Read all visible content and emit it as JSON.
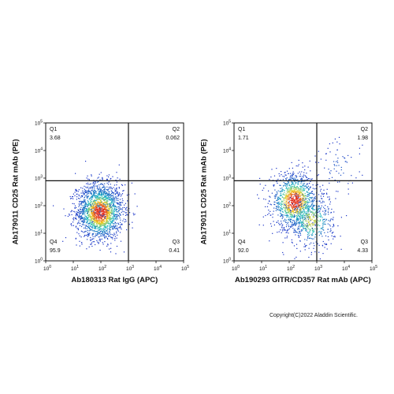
{
  "copyright": "Copyright(C)2022 Aladdin Scientific.",
  "colors": {
    "axis": "#111111",
    "divider": "#111111",
    "density_low": "#1a33c7",
    "density_mid": "#22c3c3",
    "density_high": "#f0d020",
    "density_peak": "#e2301e"
  },
  "chart_data": [
    {
      "type": "scatter",
      "subtype": "flow-cytometry-density",
      "xlabel": "Ab180313 Rat IgG (APC)",
      "ylabel": "Ab179011 CD25 Rat mAb (PE)",
      "xscale": "log",
      "yscale": "log",
      "xlim": [
        1,
        100000
      ],
      "ylim": [
        1,
        100000
      ],
      "xticks": [
        1,
        10,
        100,
        1000,
        10000,
        100000
      ],
      "yticks": [
        1,
        10,
        100,
        1000,
        10000,
        100000
      ],
      "tick_exponents": [
        "0",
        "1",
        "2",
        "3",
        "4",
        "5"
      ],
      "gate_x": 1000,
      "gate_y": 800,
      "quadrants": [
        {
          "name": "Q1",
          "value": "3.68"
        },
        {
          "name": "Q2",
          "value": "0.062"
        },
        {
          "name": "Q3",
          "value": "0.41"
        },
        {
          "name": "Q4",
          "value": "95.9"
        }
      ],
      "populations": [
        {
          "x": 90,
          "y": 60,
          "count": 1800,
          "color": "density"
        },
        {
          "x": 80,
          "y": 180,
          "count": 220,
          "color": "density"
        }
      ]
    },
    {
      "type": "scatter",
      "subtype": "flow-cytometry-density",
      "xlabel": "Ab190293 GITR/CD357 Rat mAb (APC)",
      "ylabel": "Ab179011 CD25 Rat mAb (PE)",
      "xscale": "log",
      "yscale": "log",
      "xlim": [
        1,
        100000
      ],
      "ylim": [
        1,
        100000
      ],
      "xticks": [
        1,
        10,
        100,
        1000,
        10000,
        100000
      ],
      "yticks": [
        1,
        10,
        100,
        1000,
        10000,
        100000
      ],
      "tick_exponents": [
        "0",
        "1",
        "2",
        "3",
        "4",
        "5"
      ],
      "gate_x": 1000,
      "gate_y": 800,
      "quadrants": [
        {
          "name": "Q1",
          "value": "1.71"
        },
        {
          "name": "Q2",
          "value": "1.98"
        },
        {
          "name": "Q3",
          "value": "4.33"
        },
        {
          "name": "Q4",
          "value": "92.0"
        }
      ],
      "populations": [
        {
          "x": 150,
          "y": 150,
          "count": 1200,
          "color": "density"
        },
        {
          "x": 600,
          "y": 30,
          "count": 500,
          "color": "density"
        },
        {
          "x": 6000,
          "y": 2500,
          "count": 70,
          "color": "density"
        }
      ]
    }
  ]
}
